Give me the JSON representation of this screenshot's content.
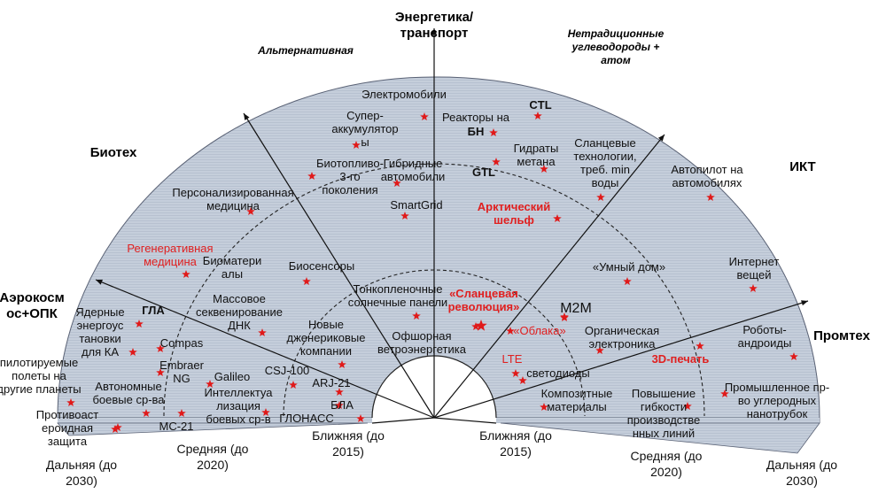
{
  "sectors": {
    "energy": [
      "Энергетика/",
      "транспорт"
    ],
    "alt": "Альтернативная",
    "nontrad": [
      "Нетрадиционные",
      "углеводороды +",
      "атом"
    ],
    "biotech": "Биотех",
    "ict": "ИКТ",
    "aero": [
      "Аэрокосм",
      "ос+ОПК"
    ],
    "prom": "Промтех"
  },
  "horizons": {
    "near_left": [
      "Ближняя (до",
      "2015)"
    ],
    "mid_left": [
      "Средняя (до",
      "2020)"
    ],
    "far_left": [
      "Дальняя (до",
      "2030)"
    ],
    "near_right": [
      "Ближняя (до",
      "2015)"
    ],
    "mid_right": [
      "Средняя (до",
      "2020)"
    ],
    "far_right": [
      "Дальняя (до",
      "2030)"
    ]
  },
  "items": {
    "electromobili": [
      "Электромобили"
    ],
    "superaccum": [
      "Супер-",
      "аккумулятор",
      "ы"
    ],
    "biofuel": [
      "Биотопливо-",
      "3-го",
      "поколения"
    ],
    "hybrid": [
      "Гибридные",
      "автомобили"
    ],
    "smartgrid": [
      "SmartGrid"
    ],
    "reactors": [
      "Реакторы на"
    ],
    "bn": [
      "БН"
    ],
    "ctl": [
      "CTL"
    ],
    "hydrates": [
      "Гидраты",
      "метана"
    ],
    "gtl": [
      "GTL"
    ],
    "shale": [
      "Сланцевые",
      "технологии,",
      "треб. min",
      "воды"
    ],
    "arctic": [
      "Арктический",
      "шельф"
    ],
    "autopilot": [
      "Автопилот на",
      "автомобилях"
    ],
    "persmed": [
      "Персонализированная",
      "медицина"
    ],
    "regen": [
      "Регенеративная",
      "медицина"
    ],
    "biomat": [
      "Биоматери",
      "алы"
    ],
    "biosens": [
      "Биосенсоры"
    ],
    "dna": [
      "Массовое",
      "секвенирование",
      "ДНК"
    ],
    "thinfilm": [
      "Тонкопленочные",
      "солнечные панели"
    ],
    "shalerev": [
      "«Сланцевая",
      "революция»"
    ],
    "m2m": [
      "M2M"
    ],
    "smarthome": [
      "«Умный дом»"
    ],
    "iot": [
      "Интернет",
      "вещей"
    ],
    "newgen": [
      "Новые",
      "дженериковые",
      "компании"
    ],
    "offshore": [
      "Офшорная",
      "ветроэнергетика"
    ],
    "clouds": [
      "«Облака»"
    ],
    "organic": [
      "Органическая",
      "электроника"
    ],
    "robots": [
      "Роботы-",
      "андроиды"
    ],
    "nuclear": [
      "Ядерные",
      "энергоус",
      "тановки",
      "для КА"
    ],
    "gla": [
      "ГЛА"
    ],
    "compas": [
      "Compas"
    ],
    "embraer": [
      "Embraer",
      "NG"
    ],
    "galileo": [
      "Galileo"
    ],
    "csj": [
      "CSJ-100"
    ],
    "manned": [
      "пилотируемые",
      "полеты на",
      "другие планеты"
    ],
    "autoarms": [
      "Автономные",
      "боевые ср-ва"
    ],
    "intel": [
      "Интеллектуа",
      "лизация",
      "боевых ср-в"
    ],
    "arj": [
      "ARJ-21"
    ],
    "bla": [
      "БЛА"
    ],
    "glonass": [
      "ГЛОНАСС"
    ],
    "mc21": [
      "МС-21"
    ],
    "antiast": [
      "Противоаст",
      "ероидная",
      "защита"
    ],
    "lte": [
      "LTE"
    ],
    "leds": [
      "светодиоды"
    ],
    "print3d": [
      "3D-печать"
    ],
    "composites": [
      "Композитные",
      "материалы"
    ],
    "flex": [
      "Повышение",
      "гибкости",
      "производстве",
      "нных линий"
    ],
    "nanotubes": [
      "Промышленное пр-",
      "во углеродных",
      "нанотрубок"
    ]
  }
}
